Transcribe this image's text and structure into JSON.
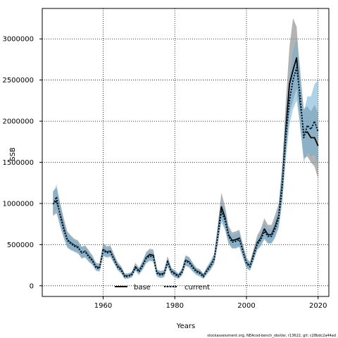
{
  "chart_data": {
    "type": "line",
    "xlabel": "Years",
    "ylabel": "SSB",
    "xlim": [
      1943,
      2023
    ],
    "ylim": [
      -130000,
      3370000
    ],
    "x_ticks": [
      1960,
      1980,
      2000,
      2020
    ],
    "y_ticks": [
      0,
      500000,
      1000000,
      1500000,
      2000000,
      2500000,
      3000000
    ],
    "grid": true,
    "legend_position": "bottom-center",
    "footer": "stockassessment.org, NEAcod-bench_obsVar, r13622, git: c28bdc2a44ad",
    "x": [
      1946,
      1947,
      1948,
      1949,
      1950,
      1951,
      1952,
      1953,
      1954,
      1955,
      1956,
      1957,
      1958,
      1959,
      1960,
      1961,
      1962,
      1963,
      1964,
      1965,
      1966,
      1967,
      1968,
      1969,
      1970,
      1971,
      1972,
      1973,
      1974,
      1975,
      1976,
      1977,
      1978,
      1979,
      1980,
      1981,
      1982,
      1983,
      1984,
      1985,
      1986,
      1987,
      1988,
      1989,
      1990,
      1991,
      1992,
      1993,
      1994,
      1995,
      1996,
      1997,
      1998,
      1999,
      2000,
      2001,
      2002,
      2003,
      2004,
      2005,
      2006,
      2007,
      2008,
      2009,
      2010,
      2011,
      2012,
      2013,
      2014,
      2015,
      2016,
      2017,
      2018,
      2019,
      2020
    ],
    "series": [
      {
        "name": "base",
        "color": "#000000",
        "band_color": "#808080",
        "values": [
          1000000,
          1030000,
          870000,
          700000,
          560000,
          520000,
          490000,
          470000,
          400000,
          420000,
          360000,
          310000,
          230000,
          220000,
          440000,
          410000,
          420000,
          330000,
          240000,
          200000,
          120000,
          120000,
          140000,
          230000,
          180000,
          250000,
          340000,
          380000,
          370000,
          160000,
          140000,
          150000,
          300000,
          180000,
          150000,
          120000,
          170000,
          310000,
          290000,
          230000,
          180000,
          160000,
          120000,
          190000,
          250000,
          330000,
          620000,
          960000,
          830000,
          620000,
          550000,
          560000,
          580000,
          430000,
          280000,
          240000,
          380000,
          520000,
          580000,
          690000,
          620000,
          620000,
          720000,
          850000,
          1250000,
          1900000,
          2450000,
          2620000,
          2770000,
          2230000,
          1850000,
          1870000,
          1800000,
          1800000,
          1700000
        ],
        "lower": [
          850000,
          880000,
          730000,
          590000,
          470000,
          440000,
          420000,
          400000,
          330000,
          350000,
          290000,
          260000,
          190000,
          180000,
          370000,
          350000,
          360000,
          280000,
          200000,
          160000,
          90000,
          90000,
          110000,
          190000,
          140000,
          200000,
          280000,
          310000,
          300000,
          120000,
          100000,
          110000,
          240000,
          140000,
          110000,
          90000,
          130000,
          250000,
          230000,
          180000,
          140000,
          120000,
          90000,
          150000,
          200000,
          270000,
          510000,
          820000,
          700000,
          520000,
          460000,
          460000,
          480000,
          350000,
          220000,
          190000,
          310000,
          440000,
          490000,
          580000,
          520000,
          520000,
          600000,
          720000,
          1050000,
          1600000,
          2100000,
          2250000,
          2400000,
          1920000,
          1550000,
          1570000,
          1500000,
          1450000,
          1300000
        ],
        "upper": [
          1150000,
          1190000,
          1010000,
          820000,
          660000,
          610000,
          570000,
          550000,
          470000,
          490000,
          430000,
          370000,
          280000,
          270000,
          520000,
          480000,
          490000,
          390000,
          290000,
          240000,
          150000,
          150000,
          170000,
          280000,
          220000,
          300000,
          410000,
          450000,
          440000,
          200000,
          180000,
          190000,
          360000,
          220000,
          190000,
          150000,
          210000,
          370000,
          350000,
          280000,
          220000,
          200000,
          150000,
          230000,
          300000,
          390000,
          740000,
          1130000,
          970000,
          730000,
          650000,
          660000,
          680000,
          510000,
          340000,
          290000,
          450000,
          610000,
          690000,
          820000,
          740000,
          740000,
          860000,
          1000000,
          1480000,
          2250000,
          2900000,
          3250000,
          3150000,
          2550000,
          2150000,
          2180000,
          2120000,
          2200000,
          2100000
        ]
      },
      {
        "name": "current",
        "color": "#000000",
        "band_color": "#6baed6",
        "values": [
          990000,
          1080000,
          850000,
          680000,
          550000,
          510000,
          480000,
          460000,
          410000,
          410000,
          350000,
          300000,
          220000,
          210000,
          430000,
          400000,
          410000,
          320000,
          230000,
          190000,
          110000,
          115000,
          130000,
          220000,
          170000,
          240000,
          330000,
          360000,
          350000,
          150000,
          130000,
          140000,
          290000,
          170000,
          140000,
          110000,
          160000,
          300000,
          280000,
          220000,
          170000,
          150000,
          110000,
          180000,
          240000,
          320000,
          600000,
          900000,
          800000,
          600000,
          530000,
          540000,
          560000,
          420000,
          270000,
          230000,
          360000,
          500000,
          560000,
          660000,
          600000,
          600000,
          690000,
          820000,
          1200000,
          1800000,
          2250000,
          2500000,
          2650000,
          2300000,
          1800000,
          1950000,
          1900000,
          2000000,
          1870000
        ],
        "lower": [
          860000,
          930000,
          720000,
          580000,
          460000,
          430000,
          410000,
          390000,
          340000,
          340000,
          290000,
          250000,
          180000,
          170000,
          360000,
          340000,
          350000,
          270000,
          190000,
          150000,
          80000,
          85000,
          100000,
          180000,
          130000,
          190000,
          270000,
          300000,
          290000,
          110000,
          90000,
          100000,
          230000,
          130000,
          100000,
          80000,
          120000,
          240000,
          220000,
          170000,
          130000,
          110000,
          80000,
          140000,
          190000,
          260000,
          500000,
          770000,
          680000,
          510000,
          450000,
          450000,
          470000,
          340000,
          210000,
          180000,
          300000,
          430000,
          480000,
          560000,
          510000,
          510000,
          580000,
          700000,
          1000000,
          1550000,
          1950000,
          2150000,
          2250000,
          1950000,
          1500000,
          1620000,
          1560000,
          1600000,
          1450000
        ],
        "upper": [
          1130000,
          1230000,
          990000,
          790000,
          640000,
          590000,
          550000,
          530000,
          480000,
          480000,
          410000,
          350000,
          260000,
          250000,
          500000,
          460000,
          470000,
          370000,
          270000,
          230000,
          140000,
          145000,
          160000,
          260000,
          210000,
          290000,
          390000,
          420000,
          410000,
          190000,
          170000,
          180000,
          350000,
          210000,
          180000,
          140000,
          200000,
          360000,
          340000,
          270000,
          210000,
          190000,
          140000,
          220000,
          290000,
          380000,
          700000,
          1030000,
          920000,
          690000,
          610000,
          630000,
          650000,
          500000,
          330000,
          280000,
          420000,
          570000,
          640000,
          760000,
          690000,
          690000,
          800000,
          940000,
          1400000,
          2050000,
          2550000,
          2850000,
          3000000,
          2650000,
          2100000,
          2300000,
          2300000,
          2450000,
          2500000
        ]
      }
    ]
  }
}
